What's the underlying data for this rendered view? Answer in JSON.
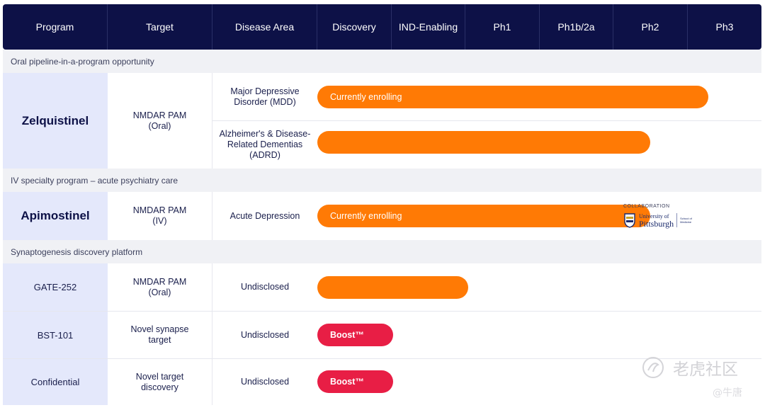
{
  "header": {
    "columns": [
      "Program",
      "Target",
      "Disease Area",
      "Discovery",
      "IND-Enabling",
      "Ph1",
      "Ph1b/2a",
      "Ph2",
      "Ph3"
    ]
  },
  "sections": [
    "Oral pipeline-in-a-program opportunity",
    "IV specialty program – acute psychiatry care",
    "Synaptogenesis discovery platform"
  ],
  "programs": [
    {
      "name": "Zelquistinel",
      "target": "NMDAR PAM\n(Oral)",
      "indications": [
        {
          "area": "Major Depressive\nDisorder (MDD)",
          "bar_label": "Currently enrolling",
          "stage_progress": 0.88,
          "bar_color": "#ff7a05"
        },
        {
          "area": "Alzheimer's & Disease-\nRelated Dementias (ADRD)",
          "bar_label": "",
          "stage_progress": 0.75,
          "bar_color": "#ff7a05"
        }
      ]
    },
    {
      "name": "Apimostinel",
      "target": "NMDAR PAM\n(IV)",
      "indications": [
        {
          "area": "Acute Depression",
          "bar_label": "Currently enrolling",
          "stage_progress": 0.75,
          "bar_color": "#ff7a05"
        }
      ],
      "collaboration": {
        "label": "COLLABORATION",
        "university_line1": "University of",
        "university_line2": "Pittsburgh",
        "school": "School of\nMedicine"
      }
    },
    {
      "name": "GATE-252",
      "target": "NMDAR PAM\n(Oral)",
      "indications": [
        {
          "area": "Undisclosed",
          "bar_label": "",
          "stage_progress": 0.34,
          "bar_color": "#ff7a05"
        }
      ]
    },
    {
      "name": "BST-101",
      "target": "Novel synapse\ntarget",
      "indications": [
        {
          "area": "Undisclosed",
          "bar_label": "Boost™",
          "stage_progress": 0.17,
          "bar_color": "#e81e45"
        }
      ]
    },
    {
      "name": "Confidential",
      "target": "Novel target\ndiscovery",
      "indications": [
        {
          "area": "Undisclosed",
          "bar_label": "Boost™",
          "stage_progress": 0.17,
          "bar_color": "#e81e45"
        }
      ]
    }
  ],
  "watermark": {
    "title": "老虎社区",
    "sub": "@牛唐"
  }
}
